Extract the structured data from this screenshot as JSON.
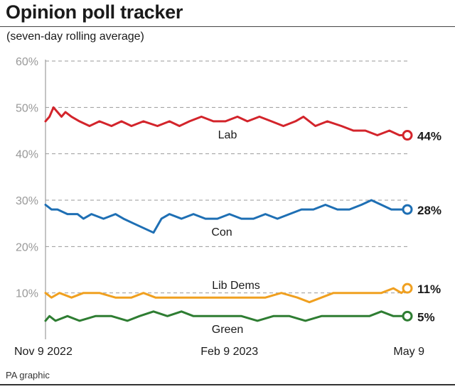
{
  "header": {
    "title": "Opinion poll tracker",
    "subtitle": "(seven-day rolling average)"
  },
  "footer": {
    "source": "PA graphic"
  },
  "chart_data": {
    "type": "line",
    "title": "Opinion poll tracker",
    "subtitle": "(seven-day rolling average)",
    "ylim": [
      0,
      60
    ],
    "y_ticks": [
      "60%",
      "50%",
      "40%",
      "30%",
      "20%",
      "10%"
    ],
    "y_tick_values": [
      60,
      50,
      40,
      30,
      20,
      10
    ],
    "x_range": [
      "2022-11-09",
      "2023-05-09"
    ],
    "x_ticks": [
      {
        "label": "Nov 9 2022",
        "date": "2022-11-09"
      },
      {
        "label": "Feb 9 2023",
        "date": "2023-02-09"
      },
      {
        "label": "May 9",
        "date": "2023-05-09"
      }
    ],
    "grid": "horizontal dashed",
    "legend": "inline labels",
    "series": [
      {
        "name": "Lab",
        "color": "#d3242b",
        "end_label": "44%",
        "x": [
          "2022-11-09",
          "2022-11-11",
          "2022-11-13",
          "2022-11-15",
          "2022-11-17",
          "2022-11-19",
          "2022-11-22",
          "2022-11-26",
          "2022-12-01",
          "2022-12-06",
          "2022-12-12",
          "2022-12-17",
          "2022-12-22",
          "2022-12-28",
          "2023-01-04",
          "2023-01-10",
          "2023-01-15",
          "2023-01-20",
          "2023-01-26",
          "2023-02-01",
          "2023-02-07",
          "2023-02-13",
          "2023-02-18",
          "2023-02-24",
          "2023-03-02",
          "2023-03-08",
          "2023-03-14",
          "2023-03-18",
          "2023-03-24",
          "2023-03-30",
          "2023-04-06",
          "2023-04-12",
          "2023-04-18",
          "2023-04-24",
          "2023-04-30",
          "2023-05-05",
          "2023-05-09"
        ],
        "values": [
          47,
          48,
          50,
          49,
          48,
          49,
          48,
          47,
          46,
          47,
          46,
          47,
          46,
          47,
          46,
          47,
          46,
          47,
          48,
          47,
          47,
          48,
          47,
          48,
          47,
          46,
          47,
          48,
          46,
          47,
          46,
          45,
          45,
          44,
          45,
          44,
          44
        ]
      },
      {
        "name": "Con",
        "color": "#1e6fb4",
        "end_label": "28%",
        "x": [
          "2022-11-09",
          "2022-11-12",
          "2022-11-15",
          "2022-11-20",
          "2022-11-25",
          "2022-11-28",
          "2022-12-02",
          "2022-12-08",
          "2022-12-14",
          "2022-12-18",
          "2022-12-23",
          "2022-12-28",
          "2023-01-02",
          "2023-01-06",
          "2023-01-10",
          "2023-01-16",
          "2023-01-22",
          "2023-01-28",
          "2023-02-03",
          "2023-02-09",
          "2023-02-15",
          "2023-02-21",
          "2023-02-27",
          "2023-03-05",
          "2023-03-11",
          "2023-03-17",
          "2023-03-23",
          "2023-03-29",
          "2023-04-04",
          "2023-04-10",
          "2023-04-16",
          "2023-04-21",
          "2023-04-26",
          "2023-05-01",
          "2023-05-06",
          "2023-05-09"
        ],
        "values": [
          29,
          28,
          28,
          27,
          27,
          26,
          27,
          26,
          27,
          26,
          25,
          24,
          23,
          26,
          27,
          26,
          27,
          26,
          26,
          27,
          26,
          26,
          27,
          26,
          27,
          28,
          28,
          29,
          28,
          28,
          29,
          30,
          29,
          28,
          28,
          28
        ]
      },
      {
        "name": "Lib Dems",
        "color": "#f0a020",
        "end_label": "11%",
        "x": [
          "2022-11-09",
          "2022-11-12",
          "2022-11-16",
          "2022-11-22",
          "2022-11-28",
          "2022-12-06",
          "2022-12-14",
          "2022-12-22",
          "2022-12-28",
          "2023-01-03",
          "2023-01-10",
          "2023-01-18",
          "2023-01-26",
          "2023-02-03",
          "2023-02-11",
          "2023-02-19",
          "2023-02-27",
          "2023-03-07",
          "2023-03-15",
          "2023-03-21",
          "2023-03-27",
          "2023-04-02",
          "2023-04-10",
          "2023-04-18",
          "2023-04-26",
          "2023-05-02",
          "2023-05-06",
          "2023-05-09"
        ],
        "values": [
          10,
          9,
          10,
          9,
          10,
          10,
          9,
          9,
          10,
          9,
          9,
          9,
          9,
          9,
          9,
          9,
          9,
          10,
          9,
          8,
          9,
          10,
          10,
          10,
          10,
          11,
          10,
          11
        ]
      },
      {
        "name": "Green",
        "color": "#2e7d32",
        "end_label": "5%",
        "x": [
          "2022-11-09",
          "2022-11-11",
          "2022-11-14",
          "2022-11-20",
          "2022-11-26",
          "2022-12-04",
          "2022-12-12",
          "2022-12-20",
          "2022-12-26",
          "2023-01-02",
          "2023-01-09",
          "2023-01-16",
          "2023-01-22",
          "2023-01-30",
          "2023-02-07",
          "2023-02-15",
          "2023-02-23",
          "2023-03-03",
          "2023-03-11",
          "2023-03-19",
          "2023-03-27",
          "2023-04-04",
          "2023-04-12",
          "2023-04-20",
          "2023-04-26",
          "2023-05-02",
          "2023-05-09"
        ],
        "values": [
          4,
          5,
          4,
          5,
          4,
          5,
          5,
          4,
          5,
          6,
          5,
          6,
          5,
          5,
          5,
          5,
          4,
          5,
          5,
          4,
          5,
          5,
          5,
          5,
          6,
          5,
          5
        ]
      }
    ]
  }
}
